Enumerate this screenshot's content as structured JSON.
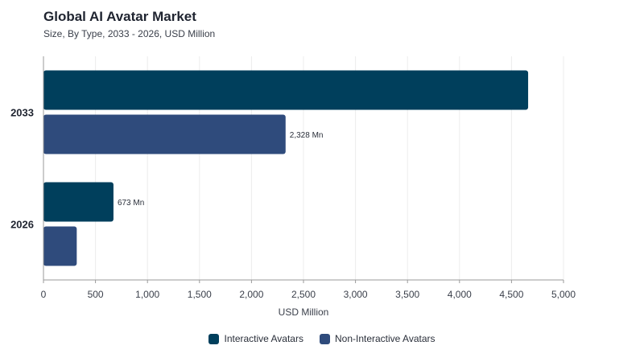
{
  "chart_data": {
    "type": "bar",
    "orientation": "horizontal",
    "title": "Global AI Avatar Market",
    "subtitle": "Size, By Type, 2033 - 2026, USD Million",
    "xlabel": "USD Million",
    "ylabel": "",
    "xlim": [
      0,
      5000
    ],
    "xticks": [
      0,
      500,
      1000,
      1500,
      2000,
      2500,
      3000,
      3500,
      4000,
      4500,
      5000
    ],
    "xtick_labels": [
      "0",
      "500",
      "1,000",
      "1,500",
      "2,000",
      "2,500",
      "3,000",
      "3,500",
      "4,000",
      "4,500",
      "5,000"
    ],
    "categories": [
      "2033",
      "2026"
    ],
    "series": [
      {
        "name": "Interactive Avatars",
        "color": "#003f5c",
        "values": [
          4660,
          673
        ],
        "labels": [
          "",
          "673 Mn"
        ]
      },
      {
        "name": "Non-Interactive Avatars",
        "color": "#2f4b7c",
        "values": [
          2328,
          320
        ],
        "labels": [
          "2,328 Mn",
          ""
        ]
      }
    ],
    "grid": true,
    "legend": "bottom-center"
  }
}
